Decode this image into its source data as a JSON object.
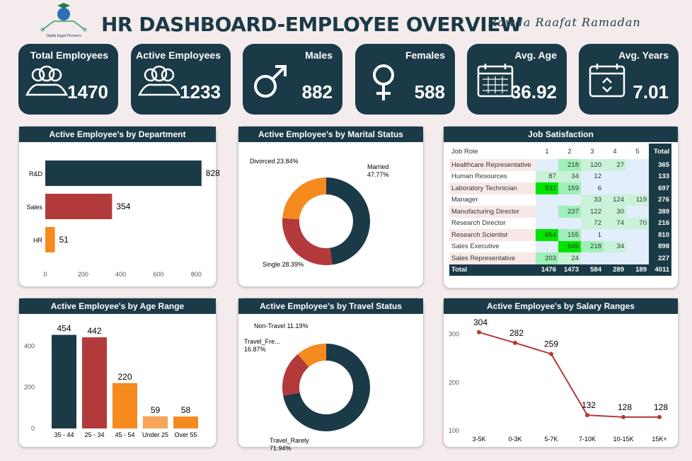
{
  "header": {
    "title": "HR DASHBOARD-EMPLOYEE OVERVIEW",
    "author": "Rawda Raafat Ramadan",
    "logo_text": "Digital Egypt Pioneers"
  },
  "kpis": [
    {
      "label": "Total Employees",
      "value": "1470",
      "icon": "people-group-icon"
    },
    {
      "label": "Active Employees",
      "value": "1233",
      "icon": "people-group-icon"
    },
    {
      "label": "Males",
      "value": "882",
      "icon": "male-symbol-icon"
    },
    {
      "label": "Females",
      "value": "588",
      "icon": "female-symbol-icon"
    },
    {
      "label": "Avg. Age",
      "value": "36.92",
      "icon": "calendar-icon"
    },
    {
      "label": "Avg. Years",
      "value": "7.01",
      "icon": "calendar-arrows-icon"
    }
  ],
  "colors": {
    "dark": "#1b3a47",
    "red": "#b33a3a",
    "orange": "#f58a1f",
    "green": "#00e500"
  },
  "panels": {
    "department": "Active Employee's by Department",
    "marital": "Active Employee's by Marital Status",
    "job": "Job Satisfaction",
    "age": "Active Employee's by Age Range",
    "travel": "Active Employee's by Travel Status",
    "salary": "Active Employee's by Salary Ranges"
  },
  "chart_data": [
    {
      "type": "bar",
      "orientation": "horizontal",
      "title": "Active Employee's by Department",
      "categories": [
        "R&D",
        "Sales",
        "HR"
      ],
      "values": [
        828,
        354,
        51
      ],
      "xlim": [
        0,
        900
      ],
      "xticks": [
        0,
        200,
        400,
        600,
        800
      ]
    },
    {
      "type": "pie",
      "donut": true,
      "title": "Active Employee's by Marital Status",
      "categories": [
        "Married",
        "Single",
        "Divorced"
      ],
      "values": [
        47.77,
        28.39,
        23.84
      ],
      "labels": [
        "Married 47.77%",
        "Single 28.39%",
        "Divorced 23.84%"
      ]
    },
    {
      "type": "bar",
      "title": "Active Employee's by Age Range",
      "categories": [
        "35 - 44",
        "25 - 34",
        "45 - 54",
        "Under 25",
        "Over 55"
      ],
      "values": [
        454,
        442,
        220,
        59,
        58
      ],
      "ylim": [
        0,
        480
      ],
      "yticks": [
        0,
        200,
        400
      ]
    },
    {
      "type": "pie",
      "donut": true,
      "title": "Active Employee's by Travel Status",
      "categories": [
        "Travel_Rarely",
        "Travel_Frequently",
        "Non-Travel"
      ],
      "values": [
        71.94,
        16.87,
        11.19
      ],
      "labels": [
        "Travel_Rarely 71.94%",
        "Travel_Fre... 16.87%",
        "Non-Travel 11.19%"
      ]
    },
    {
      "type": "line",
      "title": "Active Employee's by Salary Ranges",
      "categories": [
        "3-5K",
        "0-3K",
        "5-7K",
        "7-10K",
        "10-15K",
        "15K+"
      ],
      "values": [
        304,
        282,
        259,
        132,
        128,
        128
      ],
      "ylim": [
        100,
        320
      ],
      "yticks": [
        100,
        200,
        300
      ]
    },
    {
      "type": "table",
      "title": "Job Satisfaction",
      "columns": [
        "Job Role",
        "1",
        "2",
        "3",
        "4",
        "5",
        "Total"
      ],
      "rows": [
        [
          "Healthcare Representative",
          "",
          "218",
          "120",
          "27",
          "",
          "365"
        ],
        [
          "Human Resources",
          "87",
          "34",
          "12",
          "",
          "",
          "133"
        ],
        [
          "Laboratory Technician",
          "532",
          "159",
          "6",
          "",
          "",
          "697"
        ],
        [
          "Manager",
          "",
          "",
          "33",
          "124",
          "119",
          "276"
        ],
        [
          "Manufacturing Director",
          "",
          "237",
          "122",
          "30",
          "",
          "389"
        ],
        [
          "Research Director",
          "",
          "",
          "72",
          "74",
          "70",
          "216"
        ],
        [
          "Research Scientist",
          "654",
          "155",
          "1",
          "",
          "",
          "810"
        ],
        [
          "Sales Executive",
          "",
          "646",
          "218",
          "34",
          "",
          "898"
        ],
        [
          "Sales Representative",
          "203",
          "24",
          "",
          "",
          "",
          "227"
        ]
      ],
      "total": [
        "Total",
        "1476",
        "1473",
        "584",
        "289",
        "189",
        "4011"
      ]
    }
  ]
}
